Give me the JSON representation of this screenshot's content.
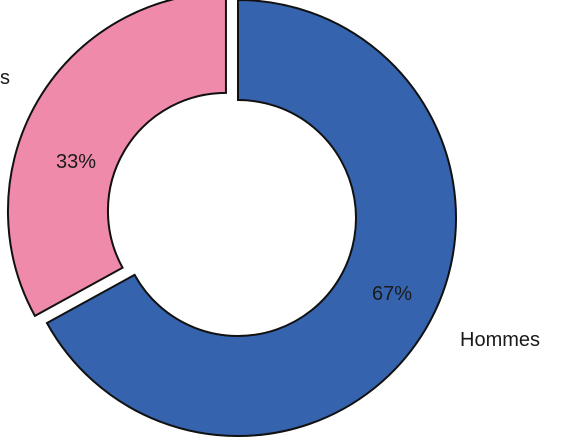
{
  "chart_data": {
    "type": "pie",
    "variant": "donut",
    "categories": [
      "Hommes",
      "Femmes"
    ],
    "values": [
      67,
      33
    ],
    "data_labels": [
      "67%",
      "33%"
    ],
    "colors": [
      "#3563AE",
      "#EF8AAB"
    ],
    "legend": "none",
    "category_labels": {
      "Hommes": "Hommes",
      "Femmes": "s"
    }
  }
}
